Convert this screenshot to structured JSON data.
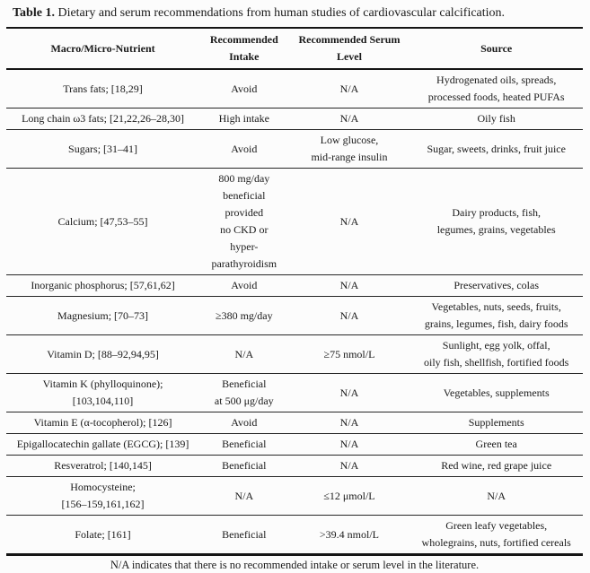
{
  "page": {
    "background_color": "#fcfcfc",
    "text_color": "#1a1a1a",
    "border_color": "#151515"
  },
  "title": {
    "label": "Table 1.",
    "text": "Dietary and serum recommendations from human studies of cardiovascular calcification."
  },
  "table": {
    "columns": [
      "Macro/Micro-Nutrient",
      "Recommended\nIntake",
      "Recommended Serum\nLevel",
      "Source"
    ],
    "rows": [
      {
        "nutrient": "Trans fats; [18,29]",
        "intake": "Avoid",
        "serum": "N/A",
        "source": "Hydrogenated oils, spreads,\nprocessed foods, heated PUFAs"
      },
      {
        "nutrient": "Long chain ω3 fats; [21,22,26–28,30]",
        "intake": "High intake",
        "serum": "N/A",
        "source": "Oily fish"
      },
      {
        "nutrient": "Sugars; [31–41]",
        "intake": "Avoid",
        "serum": "Low glucose,\nmid-range insulin",
        "source": "Sugar, sweets, drinks, fruit juice"
      },
      {
        "nutrient": "Calcium; [47,53–55]",
        "intake": "800 mg/day\nbeneficial provided\nno CKD or\nhyper-parathyroidism",
        "serum": "N/A",
        "source": "Dairy products, fish,\nlegumes, grains, vegetables"
      },
      {
        "nutrient": "Inorganic phosphorus; [57,61,62]",
        "intake": "Avoid",
        "serum": "N/A",
        "source": "Preservatives, colas"
      },
      {
        "nutrient": "Magnesium; [70–73]",
        "intake": "≥380 mg/day",
        "serum": "N/A",
        "source": "Vegetables, nuts, seeds, fruits,\ngrains, legumes, fish, dairy foods"
      },
      {
        "nutrient": "Vitamin D; [88–92,94,95]",
        "intake": "N/A",
        "serum": "≥75 nmol/L",
        "source": "Sunlight, egg yolk, offal,\noily fish, shellfish, fortified foods"
      },
      {
        "nutrient": "Vitamin K (phylloquinone);\n[103,104,110]",
        "intake": "Beneficial\nat 500 μg/day",
        "serum": "N/A",
        "source": "Vegetables, supplements"
      },
      {
        "nutrient": "Vitamin E (α-tocopherol); [126]",
        "intake": "Avoid",
        "serum": "N/A",
        "source": "Supplements"
      },
      {
        "nutrient": "Epigallocatechin gallate (EGCG); [139]",
        "intake": "Beneficial",
        "serum": "N/A",
        "source": "Green tea"
      },
      {
        "nutrient": "Resveratrol; [140,145]",
        "intake": "Beneficial",
        "serum": "N/A",
        "source": "Red wine, red grape juice"
      },
      {
        "nutrient": "Homocysteine;\n[156–159,161,162]",
        "intake": "N/A",
        "serum": "≤12 μmol/L",
        "source": "N/A"
      },
      {
        "nutrient": "Folate; [161]",
        "intake": "Beneficial",
        "serum": ">39.4 nmol/L",
        "source": "Green leafy vegetables,\nwholegrains, nuts, fortified cereals"
      }
    ]
  },
  "footnote": "N/A indicates that there is no recommended intake or serum level in the literature."
}
